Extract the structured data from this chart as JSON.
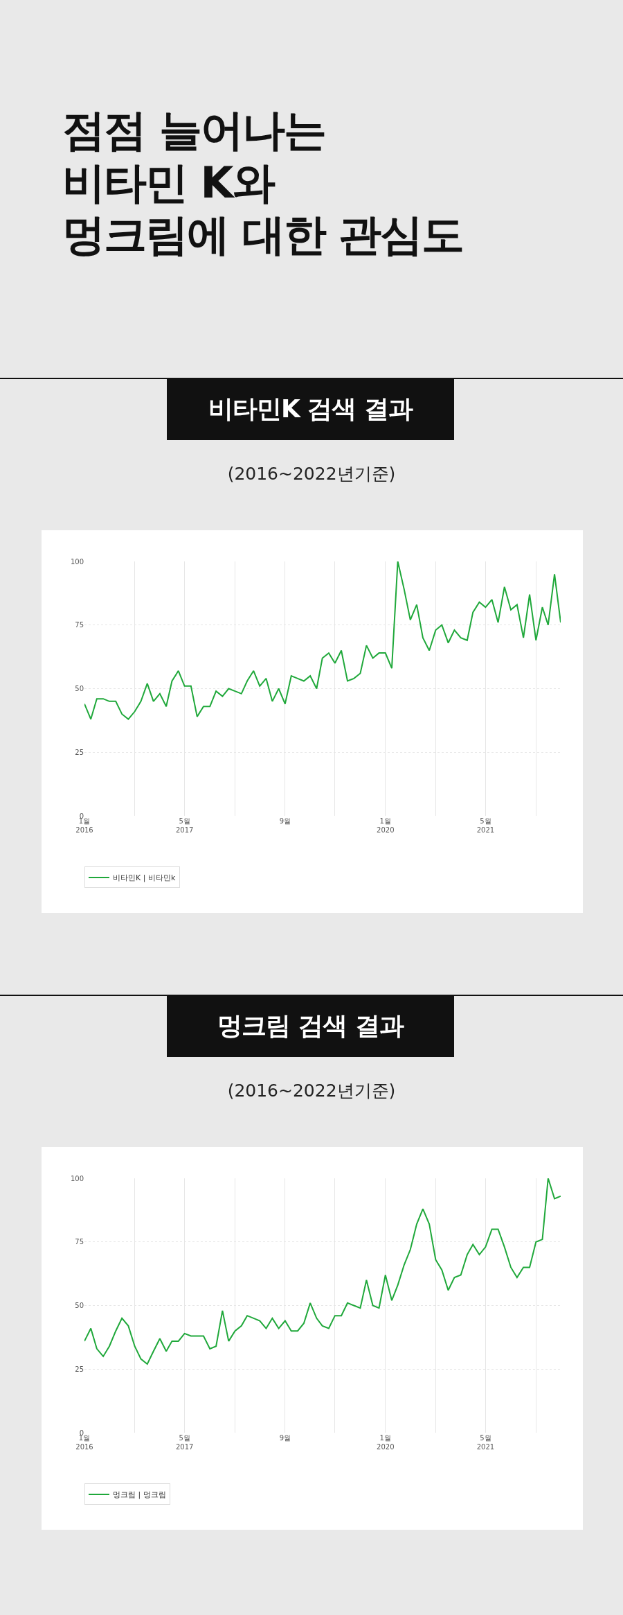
{
  "chart_data": [
    {
      "type": "other",
      "title": "점점 늘어나는\n비타민 K와\n멍크림에 대한 관심도"
    },
    {
      "type": "line",
      "title": "비타민K 검색 결과",
      "annotations": [
        "(2016~2022년기준)"
      ],
      "x": [
        "2016-01",
        "2016-02",
        "2016-03",
        "2016-04",
        "2016-05",
        "2016-06",
        "2016-07",
        "2016-08",
        "2016-09",
        "2016-10",
        "2016-11",
        "2016-12",
        "2017-01",
        "2017-02",
        "2017-03",
        "2017-04",
        "2017-05",
        "2017-06",
        "2017-07",
        "2017-08",
        "2017-09",
        "2017-10",
        "2017-11",
        "2017-12",
        "2018-01",
        "2018-02",
        "2018-03",
        "2018-04",
        "2018-05",
        "2018-06",
        "2018-07",
        "2018-08",
        "2018-09",
        "2018-10",
        "2018-11",
        "2018-12",
        "2019-01",
        "2019-02",
        "2019-03",
        "2019-04",
        "2019-05",
        "2019-06",
        "2019-07",
        "2019-08",
        "2019-09",
        "2019-10",
        "2019-11",
        "2019-12",
        "2020-01",
        "2020-02",
        "2020-03",
        "2020-04",
        "2020-05",
        "2020-06",
        "2020-07",
        "2020-08",
        "2020-09",
        "2020-10",
        "2020-11",
        "2020-12",
        "2021-01",
        "2021-02",
        "2021-03",
        "2021-04",
        "2021-05",
        "2021-06",
        "2021-07",
        "2021-08",
        "2021-09",
        "2021-10",
        "2021-11",
        "2021-12",
        "2022-01",
        "2022-02",
        "2022-03",
        "2022-04",
        "2022-05"
      ],
      "series": [
        {
          "name": "비타민K | 비타민k",
          "color": "#1fa83a",
          "values": [
            44,
            38,
            46,
            46,
            45,
            45,
            40,
            38,
            41,
            45,
            52,
            45,
            48,
            43,
            53,
            57,
            51,
            51,
            39,
            43,
            43,
            49,
            47,
            50,
            49,
            48,
            53,
            57,
            51,
            54,
            45,
            50,
            44,
            55,
            54,
            53,
            55,
            50,
            62,
            64,
            60,
            65,
            53,
            54,
            56,
            67,
            62,
            64,
            64,
            58,
            100,
            89,
            77,
            83,
            70,
            65,
            73,
            75,
            68,
            73,
            70,
            69,
            80,
            84,
            82,
            85,
            76,
            90,
            81,
            83,
            70,
            87,
            69,
            82,
            75,
            95,
            76
          ]
        }
      ],
      "xlim": [
        "2016-01",
        "2022-05"
      ],
      "ylim": [
        0,
        100
      ],
      "yticks": [
        0,
        25,
        50,
        75,
        100
      ],
      "xticks": [
        {
          "value": "2016-01",
          "label": "1월\n2016"
        },
        {
          "value": "2016-09",
          "label": null
        },
        {
          "value": "2017-05",
          "label": "5월\n2017"
        },
        {
          "value": "2018-01",
          "label": null
        },
        {
          "value": "2018-09",
          "label": "9월"
        },
        {
          "value": "2019-05",
          "label": null
        },
        {
          "value": "2020-01",
          "label": "1월\n2020"
        },
        {
          "value": "2020-09",
          "label": null
        },
        {
          "value": "2021-05",
          "label": "5월\n2021"
        },
        {
          "value": "2022-01",
          "label": null
        }
      ],
      "grid": true,
      "legend": "bottom"
    },
    {
      "type": "line",
      "title": "멍크림 검색 결과",
      "annotations": [
        "(2016~2022년기준)"
      ],
      "x": [
        "2016-01",
        "2016-02",
        "2016-03",
        "2016-04",
        "2016-05",
        "2016-06",
        "2016-07",
        "2016-08",
        "2016-09",
        "2016-10",
        "2016-11",
        "2016-12",
        "2017-01",
        "2017-02",
        "2017-03",
        "2017-04",
        "2017-05",
        "2017-06",
        "2017-07",
        "2017-08",
        "2017-09",
        "2017-10",
        "2017-11",
        "2017-12",
        "2018-01",
        "2018-02",
        "2018-03",
        "2018-04",
        "2018-05",
        "2018-06",
        "2018-07",
        "2018-08",
        "2018-09",
        "2018-10",
        "2018-11",
        "2018-12",
        "2019-01",
        "2019-02",
        "2019-03",
        "2019-04",
        "2019-05",
        "2019-06",
        "2019-07",
        "2019-08",
        "2019-09",
        "2019-10",
        "2019-11",
        "2019-12",
        "2020-01",
        "2020-02",
        "2020-03",
        "2020-04",
        "2020-05",
        "2020-06",
        "2020-07",
        "2020-08",
        "2020-09",
        "2020-10",
        "2020-11",
        "2020-12",
        "2021-01",
        "2021-02",
        "2021-03",
        "2021-04",
        "2021-05",
        "2021-06",
        "2021-07",
        "2021-08",
        "2021-09",
        "2021-10",
        "2021-11",
        "2021-12",
        "2022-01",
        "2022-02",
        "2022-03",
        "2022-04",
        "2022-05"
      ],
      "series": [
        {
          "name": "멍크림 | 멍크림",
          "color": "#1fa83a",
          "values": [
            36,
            41,
            33,
            30,
            34,
            40,
            45,
            42,
            34,
            29,
            27,
            32,
            37,
            32,
            36,
            36,
            39,
            38,
            38,
            38,
            33,
            34,
            48,
            36,
            40,
            42,
            46,
            45,
            44,
            41,
            45,
            41,
            44,
            40,
            40,
            43,
            51,
            45,
            42,
            41,
            46,
            46,
            51,
            50,
            49,
            60,
            50,
            49,
            62,
            52,
            58,
            66,
            72,
            82,
            88,
            82,
            68,
            64,
            56,
            61,
            62,
            70,
            74,
            70,
            73,
            80,
            80,
            73,
            65,
            61,
            65,
            65,
            75,
            76,
            100,
            92,
            93
          ]
        }
      ],
      "xlim": [
        "2016-01",
        "2022-05"
      ],
      "ylim": [
        0,
        100
      ],
      "yticks": [
        0,
        25,
        50,
        75,
        100
      ],
      "xticks": [
        {
          "value": "2016-01",
          "label": "1월\n2016"
        },
        {
          "value": "2016-09",
          "label": null
        },
        {
          "value": "2017-05",
          "label": "5월\n2017"
        },
        {
          "value": "2018-01",
          "label": null
        },
        {
          "value": "2018-09",
          "label": "9월"
        },
        {
          "value": "2019-05",
          "label": null
        },
        {
          "value": "2020-01",
          "label": "1월\n2020"
        },
        {
          "value": "2020-09",
          "label": null
        },
        {
          "value": "2021-05",
          "label": "5월\n2021"
        },
        {
          "value": "2022-01",
          "label": null
        }
      ],
      "grid": true,
      "legend": "bottom"
    }
  ]
}
